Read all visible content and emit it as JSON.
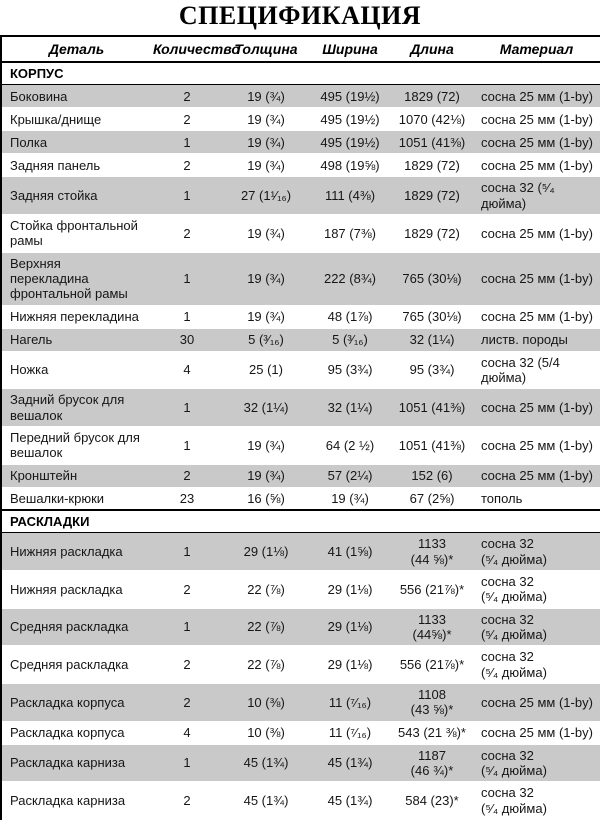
{
  "title": "СПЕЦИФИКАЦИЯ",
  "colors": {
    "row_stripe": "#c9c9c9",
    "border": "#000000",
    "background": "#ffffff"
  },
  "table": {
    "columns": [
      {
        "key": "part",
        "label": "Деталь"
      },
      {
        "key": "qty",
        "label": "Количество"
      },
      {
        "key": "thickness",
        "label": "Толщина"
      },
      {
        "key": "width",
        "label": "Ширина"
      },
      {
        "key": "length",
        "label": "Длина"
      },
      {
        "key": "material",
        "label": "Материал"
      }
    ],
    "sections": [
      {
        "name": "КОРПУС",
        "rows": [
          {
            "part": "Боковина",
            "qty": "2",
            "thickness": "19 (¾)",
            "width": "495 (19½)",
            "length": "1829 (72)",
            "material": "сосна 25 мм (1-by)"
          },
          {
            "part": "Крышка/днище",
            "qty": "2",
            "thickness": "19 (¾)",
            "width": "495 (19½)",
            "length": "1070 (42⅛)",
            "material": "сосна 25 мм (1-by)"
          },
          {
            "part": "Полка",
            "qty": "1",
            "thickness": "19 (¾)",
            "width": "495 (19½)",
            "length": "1051 (41⅜)",
            "material": "сосна 25 мм (1-by)"
          },
          {
            "part": "Задняя панель",
            "qty": "2",
            "thickness": "19 (¾)",
            "width": "498 (19⅝)",
            "length": "1829 (72)",
            "material": "сосна 25 мм (1-by)"
          },
          {
            "part": "Задняя стойка",
            "qty": "1",
            "thickness": "27 (1¹⁄₁₆)",
            "width": "111 (4⅜)",
            "length": "1829 (72)",
            "material": "сосна 32 (⁵⁄₄\nдюйма)"
          },
          {
            "part": "Стойка фронтальной\nрамы",
            "qty": "2",
            "thickness": "19 (¾)",
            "width": "187 (7⅜)",
            "length": "1829 (72)",
            "material": "сосна 25 мм (1-by)"
          },
          {
            "part": "Верхняя\nперекладина\nфронтальной рамы",
            "qty": "1",
            "thickness": "19 (¾)",
            "width": "222 (8¾)",
            "length": "765 (30⅛)",
            "material": "сосна 25 мм (1-by)"
          },
          {
            "part": "Нижняя перекладина",
            "qty": "1",
            "thickness": "19 (¾)",
            "width": "48 (1⅞)",
            "length": "765 (30⅛)",
            "material": "сосна 25 мм (1-by)"
          },
          {
            "part": "Нагель",
            "qty": "30",
            "thickness": "5 (³⁄₁₆)",
            "width": "5 (³⁄₁₆)",
            "length": "32 (1¼)",
            "material": "листв. породы"
          },
          {
            "part": "Ножка",
            "qty": "4",
            "thickness": "25 (1)",
            "width": "95 (3¾)",
            "length": "95 (3¾)",
            "material": "сосна 32 (5/4\nдюйма)"
          },
          {
            "part": "Задний брусок для\nвешалок",
            "qty": "1",
            "thickness": "32 (1¼)",
            "width": "32 (1¼)",
            "length": "1051 (41⅜)",
            "material": "сосна 25 мм (1-by)"
          },
          {
            "part": "Передний брусок для\nвешалок",
            "qty": "1",
            "thickness": "19 (¾)",
            "width": "64 (2 ½)",
            "length": "1051 (41⅜)",
            "material": "сосна 25 мм (1-by)"
          },
          {
            "part": "Кронштейн",
            "qty": "2",
            "thickness": "19 (¾)",
            "width": "57 (2¼)",
            "length": "152 (6)",
            "material": "сосна 25 мм (1-by)"
          },
          {
            "part": "Вешалки-крюки",
            "qty": "23",
            "thickness": "16 (⅝)",
            "width": "19 (¾)",
            "length": "67 (2⅝)",
            "material": "тополь"
          }
        ]
      },
      {
        "name": "РАСКЛАДКИ",
        "rows": [
          {
            "part": "Нижняя раскладка",
            "qty": "1",
            "thickness": "29 (1⅛)",
            "width": "41 (1⅝)",
            "length": "1133\n(44 ⅝)*",
            "material": "сосна 32\n(⁵⁄₄ дюйма)"
          },
          {
            "part": "Нижняя раскладка",
            "qty": "2",
            "thickness": "22 (⅞)",
            "width": "29 (1⅛)",
            "length": "556 (21⅞)*",
            "material": "сосна 32\n(⁵⁄₄ дюйма)"
          },
          {
            "part": "Средняя раскладка",
            "qty": "1",
            "thickness": "22 (⅞)",
            "width": "29 (1⅛)",
            "length": "1133\n(44⅝)*",
            "material": "сосна 32\n(⁵⁄₄ дюйма)"
          },
          {
            "part": "Средняя раскладка",
            "qty": "2",
            "thickness": "22 (⅞)",
            "width": "29 (1⅛)",
            "length": "556 (21⅞)*",
            "material": "сосна 32\n(⁵⁄₄ дюйма)"
          },
          {
            "part": "Раскладка корпуса",
            "qty": "2",
            "thickness": "10 (⅜)",
            "width": "11 (⁷⁄₁₆)",
            "length": "1108\n(43 ⅝)*",
            "material": "сосна 25 мм (1-by)"
          },
          {
            "part": "Раскладка корпуса",
            "qty": "4",
            "thickness": "10 (⅜)",
            "width": "11 (⁷⁄₁₆)",
            "length": "543 (21 ⅜)*",
            "material": "сосна 25 мм (1-by)"
          },
          {
            "part": "Раскладка карниза",
            "qty": "1",
            "thickness": "45 (1¾)",
            "width": "45 (1¾)",
            "length": "1187\n(46 ¾)*",
            "material": "сосна 32\n(⁵⁄₄ дюйма)"
          },
          {
            "part": "Раскладка карниза",
            "qty": "2",
            "thickness": "45 (1¾)",
            "width": "45 (1¾)",
            "length": "584 (23)*",
            "material": "сосна 32\n(⁵⁄₄ дюйма)"
          }
        ]
      }
    ]
  }
}
